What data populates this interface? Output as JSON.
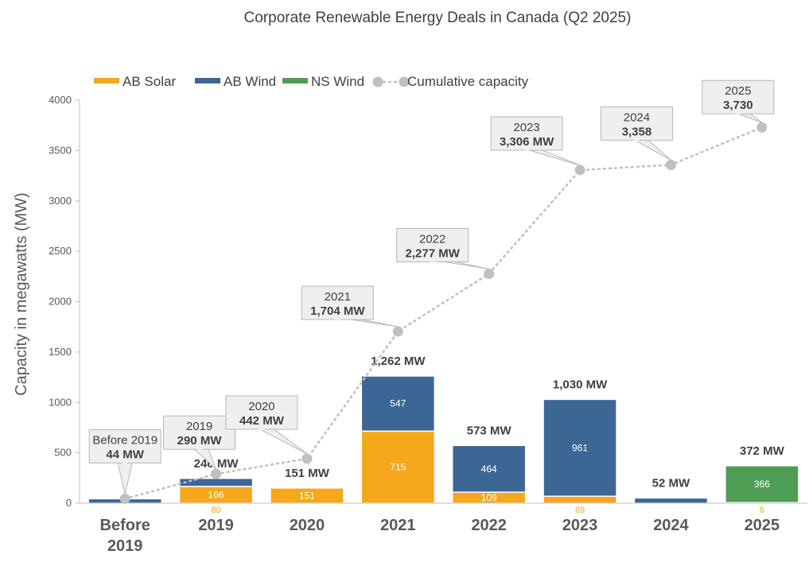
{
  "chart_data": {
    "type": "bar",
    "title": "Corporate Renewable Energy Deals in Canada (Q2 2025)",
    "ylabel": "Capacity in megawatts (MW)",
    "xlabel": "",
    "ylim": [
      0,
      4000
    ],
    "yticks": [
      0,
      500,
      1000,
      1500,
      2000,
      2500,
      3000,
      3500,
      4000
    ],
    "stacked": true,
    "legend_position": "top-left",
    "grid": false,
    "categories": [
      "Before 2019",
      "2019",
      "2020",
      "2021",
      "2022",
      "2023",
      "2024",
      "2025"
    ],
    "category_display": [
      [
        "Before",
        "2019"
      ],
      [
        "2019"
      ],
      [
        "2020"
      ],
      [
        "2021"
      ],
      [
        "2022"
      ],
      [
        "2023"
      ],
      [
        "2024"
      ],
      [
        "2025"
      ]
    ],
    "series": [
      {
        "name": "AB Solar",
        "color": "#f5a81c",
        "values": [
          0,
          166,
          151,
          715,
          109,
          69,
          0,
          6
        ],
        "labels": [
          "",
          "166",
          "151",
          "715",
          "109",
          "69",
          "",
          "6"
        ]
      },
      {
        "name": "AB Wind",
        "color": "#3c6694",
        "values": [
          44,
          80,
          0,
          547,
          464,
          961,
          52,
          0
        ],
        "labels": [
          "",
          "80",
          "",
          "547",
          "464",
          "961",
          "",
          ""
        ]
      },
      {
        "name": "NS Wind",
        "color": "#4e9e55",
        "values": [
          0,
          0,
          0,
          0,
          0,
          0,
          0,
          366
        ],
        "labels": [
          "",
          "",
          "",
          "",
          "",
          "",
          "",
          "366"
        ]
      }
    ],
    "totals": [
      44,
      246,
      151,
      1262,
      573,
      1030,
      52,
      372
    ],
    "total_labels": [
      "",
      "246 MW",
      "151 MW",
      "1,262 MW",
      "573 MW",
      "1,030 MW",
      "52 MW",
      "372 MW"
    ],
    "cumulative": {
      "name": "Cumulative capacity",
      "color": "#c0c0c0",
      "values": [
        44,
        290,
        442,
        1704,
        2277,
        3306,
        3358,
        3730
      ],
      "callouts": [
        {
          "year": "Before 2019",
          "value": "44 MW"
        },
        {
          "year": "2019",
          "value": "290 MW"
        },
        {
          "year": "2020",
          "value": "442 MW"
        },
        {
          "year": "2021",
          "value": "1,704 MW"
        },
        {
          "year": "2022",
          "value": "2,277 MW"
        },
        {
          "year": "2023",
          "value": "3,306 MW"
        },
        {
          "year": "2024",
          "value": "3,358"
        },
        {
          "year": "2025",
          "value": "3,730"
        }
      ]
    }
  }
}
